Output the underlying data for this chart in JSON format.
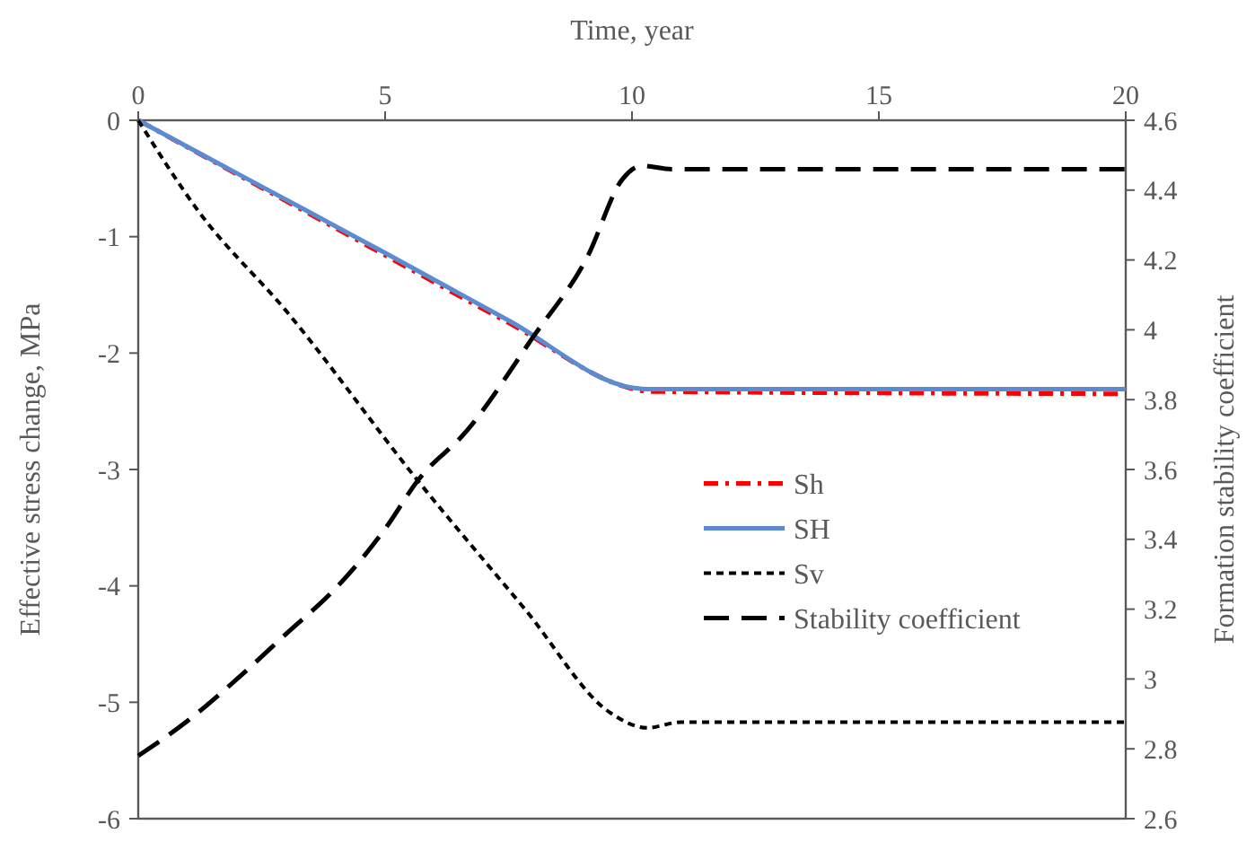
{
  "chart_data": {
    "type": "line",
    "xlabel": "Time, year",
    "ylabel": "Effective stress change, MPa",
    "y2label": "Formation stability coefficient",
    "xlim": [
      0,
      20
    ],
    "xticks": [
      0,
      5,
      10,
      15,
      20
    ],
    "ylim": [
      -6,
      0
    ],
    "yticks": [
      -6,
      -5,
      -4,
      -3,
      -2,
      -1,
      0
    ],
    "y2lim": [
      2.6,
      4.6
    ],
    "y2ticks": [
      2.6,
      2.8,
      3,
      3.2,
      3.4,
      3.6,
      3.8,
      4,
      4.2,
      4.4,
      4.6
    ],
    "legend": "right",
    "grid": false,
    "series": [
      {
        "name": "Sh",
        "color": "#ff0000",
        "line_style": "dashdot",
        "x": [
          0,
          2.5,
          5,
          7.5,
          10.04,
          10.3,
          20
        ],
        "values": [
          0,
          -0.58,
          -1.16,
          -1.74,
          -2.31,
          -2.33,
          -2.35
        ]
      },
      {
        "name": "SH",
        "color": "#5b8bd0",
        "line_style": "solid",
        "x": [
          0,
          2.5,
          5,
          7.5,
          10.04,
          10.3,
          20
        ],
        "values": [
          0,
          -0.57,
          -1.14,
          -1.72,
          -2.3,
          -2.31,
          -2.31
        ]
      },
      {
        "name": "Sv",
        "color": "#000000",
        "line_style": "dotted",
        "x": [
          0,
          1.2,
          3,
          5.67,
          7.85,
          9.56,
          10.3,
          11,
          20
        ],
        "values": [
          0,
          -0.77,
          -1.64,
          -3.1,
          -4.21,
          -5.09,
          -5.22,
          -5.17,
          -5.17
        ]
      },
      {
        "name": "Stability coefficient",
        "color": "#000000",
        "line_style": "dashed",
        "axis": "y2",
        "x": [
          0,
          1,
          2,
          3,
          4,
          5,
          5.67,
          6.65,
          8,
          9.1,
          9.8,
          10.2,
          10.8,
          20
        ],
        "values": [
          2.78,
          2.88,
          3.0,
          3.13,
          3.26,
          3.43,
          3.57,
          3.71,
          3.98,
          4.21,
          4.43,
          4.47,
          4.46,
          4.46
        ]
      }
    ]
  }
}
